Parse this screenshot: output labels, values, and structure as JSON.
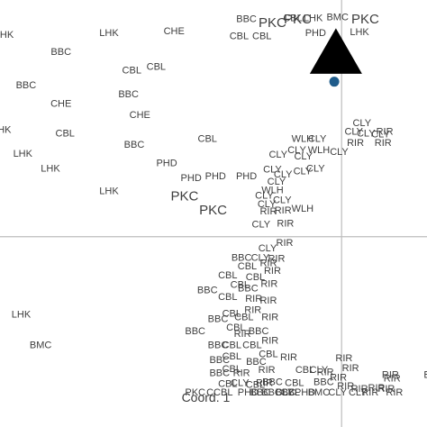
{
  "chart_data": {
    "type": "scatter",
    "title": "",
    "xlabel": "Coord. 1",
    "ylabel": "",
    "xlim": [
      -4.2,
      1.05
    ],
    "ylim": [
      -2.05,
      2.55
    ],
    "grid": false,
    "zero_lines": true,
    "colors": {
      "point": "#1f5c8b",
      "triangle": "#000000",
      "axis": "#bdbdbd",
      "text": "#3d3d3d"
    },
    "labels": [
      {
        "text": "LHK",
        "x": -4.15,
        "y": 2.14
      },
      {
        "text": "BBC",
        "x": -3.45,
        "y": 1.96
      },
      {
        "text": "LHK",
        "x": -2.86,
        "y": 2.16
      },
      {
        "text": "CHE",
        "x": -2.06,
        "y": 2.18
      },
      {
        "text": "CBL",
        "x": -2.58,
        "y": 1.76
      },
      {
        "text": "CBL",
        "x": -2.28,
        "y": 1.8
      },
      {
        "text": "BBC",
        "x": -3.88,
        "y": 1.6
      },
      {
        "text": "BBC",
        "x": -2.62,
        "y": 1.5
      },
      {
        "text": "CHE",
        "x": -3.45,
        "y": 1.4
      },
      {
        "text": "CHE",
        "x": -2.48,
        "y": 1.28
      },
      {
        "text": "LHK",
        "x": -4.18,
        "y": 1.12
      },
      {
        "text": "CBL",
        "x": -3.4,
        "y": 1.08
      },
      {
        "text": "BBC",
        "x": -2.55,
        "y": 0.96
      },
      {
        "text": "CBL",
        "x": -1.65,
        "y": 1.02
      },
      {
        "text": "LHK",
        "x": -3.92,
        "y": 0.86
      },
      {
        "text": "LHK",
        "x": -3.58,
        "y": 0.7
      },
      {
        "text": "PHD",
        "x": -2.15,
        "y": 0.76
      },
      {
        "text": "PHD",
        "x": -1.85,
        "y": 0.6
      },
      {
        "text": "PHD",
        "x": -1.55,
        "y": 0.62
      },
      {
        "text": "PHD",
        "x": -1.17,
        "y": 0.62
      },
      {
        "text": "LHK",
        "x": -2.86,
        "y": 0.46
      },
      {
        "text": "PKC",
        "x": -1.93,
        "y": 0.39,
        "big": true
      },
      {
        "text": "PKC",
        "x": -1.58,
        "y": 0.24,
        "big": true
      },
      {
        "text": "BBC",
        "x": -1.17,
        "y": 2.31
      },
      {
        "text": "CBL",
        "x": -1.26,
        "y": 2.13
      },
      {
        "text": "CBL",
        "x": -0.98,
        "y": 2.13
      },
      {
        "text": "PKC",
        "x": -0.85,
        "y": 2.26,
        "big": true
      },
      {
        "text": "CBL",
        "x": -0.6,
        "y": 2.32
      },
      {
        "text": "PKC",
        "x": -0.54,
        "y": 2.3,
        "big": true
      },
      {
        "text": "LHK",
        "x": -0.35,
        "y": 2.32
      },
      {
        "text": "BMC",
        "x": -0.05,
        "y": 2.33
      },
      {
        "text": "PKC",
        "x": 0.29,
        "y": 2.3,
        "big": true
      },
      {
        "text": "PHD",
        "x": -0.32,
        "y": 2.16
      },
      {
        "text": "LHK",
        "x": 0.22,
        "y": 2.17
      },
      {
        "text": "CLY",
        "x": 0.25,
        "y": 1.19
      },
      {
        "text": "CLY",
        "x": 0.15,
        "y": 1.1
      },
      {
        "text": "CLY",
        "x": 0.48,
        "y": 1.07
      },
      {
        "text": "RIR",
        "x": 0.53,
        "y": 1.1
      },
      {
        "text": "CLY",
        "x": 0.3,
        "y": 1.08
      },
      {
        "text": "RIR",
        "x": 0.17,
        "y": 0.98
      },
      {
        "text": "RIR",
        "x": 0.51,
        "y": 0.98
      },
      {
        "text": "CLY",
        "x": -0.3,
        "y": 1.02
      },
      {
        "text": "WLH",
        "x": -0.48,
        "y": 1.02
      },
      {
        "text": "CLY",
        "x": -0.55,
        "y": 0.9
      },
      {
        "text": "WLH",
        "x": -0.28,
        "y": 0.9
      },
      {
        "text": "CLY",
        "x": -0.03,
        "y": 0.88
      },
      {
        "text": "CLY",
        "x": -0.78,
        "y": 0.85
      },
      {
        "text": "CLY",
        "x": -0.47,
        "y": 0.83
      },
      {
        "text": "CLY",
        "x": -0.32,
        "y": 0.7
      },
      {
        "text": "CLY",
        "x": -0.85,
        "y": 0.69
      },
      {
        "text": "CLY",
        "x": -0.72,
        "y": 0.64
      },
      {
        "text": "CLY",
        "x": -0.48,
        "y": 0.67
      },
      {
        "text": "CLY",
        "x": -0.8,
        "y": 0.56
      },
      {
        "text": "WLH",
        "x": -0.85,
        "y": 0.47
      },
      {
        "text": "CLY",
        "x": -0.95,
        "y": 0.41
      },
      {
        "text": "CLY",
        "x": -0.92,
        "y": 0.32
      },
      {
        "text": "CLY",
        "x": -0.73,
        "y": 0.36
      },
      {
        "text": "RIR",
        "x": -0.72,
        "y": 0.25
      },
      {
        "text": "RIR",
        "x": -0.9,
        "y": 0.24
      },
      {
        "text": "WLH",
        "x": -0.48,
        "y": 0.27
      },
      {
        "text": "RIR",
        "x": -0.69,
        "y": 0.11
      },
      {
        "text": "CLY",
        "x": -0.99,
        "y": 0.1
      },
      {
        "text": "RIR",
        "x": -0.7,
        "y": -0.1
      },
      {
        "text": "CLY",
        "x": -0.91,
        "y": -0.16
      },
      {
        "text": "BBC",
        "x": -1.23,
        "y": -0.26
      },
      {
        "text": "CLY",
        "x": -1.0,
        "y": -0.26
      },
      {
        "text": "RIR",
        "x": -0.8,
        "y": -0.27
      },
      {
        "text": "RIR",
        "x": -0.9,
        "y": -0.32
      },
      {
        "text": "CBL",
        "x": -1.16,
        "y": -0.35
      },
      {
        "text": "CBL",
        "x": -1.4,
        "y": -0.45
      },
      {
        "text": "RIR",
        "x": -0.85,
        "y": -0.4
      },
      {
        "text": "CBL",
        "x": -1.06,
        "y": -0.47
      },
      {
        "text": "CBL",
        "x": -1.25,
        "y": -0.55
      },
      {
        "text": "BBC",
        "x": -1.15,
        "y": -0.59
      },
      {
        "text": "RIR",
        "x": -0.89,
        "y": -0.54
      },
      {
        "text": "BBC",
        "x": -1.65,
        "y": -0.61
      },
      {
        "text": "CBL",
        "x": -1.4,
        "y": -0.68
      },
      {
        "text": "RIR",
        "x": -0.9,
        "y": -0.72
      },
      {
        "text": "RIR",
        "x": -1.08,
        "y": -0.7
      },
      {
        "text": "CBL",
        "x": -1.35,
        "y": -0.86
      },
      {
        "text": "CBL",
        "x": -1.2,
        "y": -0.9
      },
      {
        "text": "RIR",
        "x": -1.09,
        "y": -0.82
      },
      {
        "text": "RIR",
        "x": -0.88,
        "y": -0.9
      },
      {
        "text": "BBC",
        "x": -1.52,
        "y": -0.92
      },
      {
        "text": "BBC",
        "x": -1.02,
        "y": -1.05
      },
      {
        "text": "CBL",
        "x": -1.3,
        "y": -1.01
      },
      {
        "text": "RIR",
        "x": -1.22,
        "y": -1.08
      },
      {
        "text": "LHK",
        "x": -3.94,
        "y": -0.87
      },
      {
        "text": "BBC",
        "x": -1.8,
        "y": -1.05
      },
      {
        "text": "BBC",
        "x": -1.52,
        "y": -1.2
      },
      {
        "text": "CBL",
        "x": -1.35,
        "y": -1.2
      },
      {
        "text": "CBL",
        "x": -1.1,
        "y": -1.2
      },
      {
        "text": "RIR",
        "x": -0.88,
        "y": -1.15
      },
      {
        "text": "BMC",
        "x": -3.7,
        "y": -1.2
      },
      {
        "text": "BBC",
        "x": -1.5,
        "y": -1.36
      },
      {
        "text": "CBL",
        "x": -1.35,
        "y": -1.32
      },
      {
        "text": "BBC",
        "x": -1.05,
        "y": -1.38
      },
      {
        "text": "RIR",
        "x": -0.65,
        "y": -1.33
      },
      {
        "text": "BBC",
        "x": -1.5,
        "y": -1.5
      },
      {
        "text": "CBL",
        "x": -1.35,
        "y": -1.46
      },
      {
        "text": "RIR",
        "x": -1.23,
        "y": -1.5
      },
      {
        "text": "RIR",
        "x": -0.92,
        "y": -1.47
      },
      {
        "text": "RIR",
        "x": 0.03,
        "y": -1.34
      },
      {
        "text": "RIR",
        "x": 0.11,
        "y": -1.45
      },
      {
        "text": "CBL",
        "x": -0.45,
        "y": -1.47
      },
      {
        "text": "CLY",
        "x": -0.28,
        "y": -1.47
      },
      {
        "text": "RIR",
        "x": -0.2,
        "y": -1.49
      },
      {
        "text": "CBL",
        "x": -1.4,
        "y": -1.62
      },
      {
        "text": "CLY",
        "x": -1.25,
        "y": -1.61
      },
      {
        "text": "CCBL",
        "x": -1.5,
        "y": -1.71
      },
      {
        "text": "PHD",
        "x": -1.15,
        "y": -1.71
      },
      {
        "text": "BBC",
        "x": -0.86,
        "y": -1.71
      },
      {
        "text": "CBL",
        "x": -0.63,
        "y": -1.71
      },
      {
        "text": "BMC",
        "x": -0.28,
        "y": -1.71
      },
      {
        "text": "CLY",
        "x": -0.05,
        "y": -1.71
      },
      {
        "text": "RIR",
        "x": 0.05,
        "y": -1.64
      },
      {
        "text": "RIR",
        "x": 0.22,
        "y": -1.67
      },
      {
        "text": "RIR",
        "x": 0.35,
        "y": -1.71
      },
      {
        "text": "RIR",
        "x": 0.55,
        "y": -1.67
      },
      {
        "text": "RIR",
        "x": 0.6,
        "y": -1.52
      },
      {
        "text": "RIR",
        "x": 0.43,
        "y": -1.66
      },
      {
        "text": "RIR",
        "x": 0.62,
        "y": -1.56
      },
      {
        "text": "RIR",
        "x": -0.04,
        "y": -1.55
      },
      {
        "text": "E",
        "x": 1.05,
        "y": -1.52
      },
      {
        "text": "BBC",
        "x": -0.85,
        "y": -1.6
      },
      {
        "text": "BBC",
        "x": -0.69,
        "y": -1.71
      },
      {
        "text": "CBL",
        "x": -0.9,
        "y": -1.3
      },
      {
        "text": "RIR",
        "x": -0.95,
        "y": -1.61
      },
      {
        "text": "CBL",
        "x": -1.06,
        "y": -1.63
      },
      {
        "text": "CLY",
        "x": -0.7,
        "y": -1.71
      },
      {
        "text": "BBC",
        "x": -1.0,
        "y": -1.71
      },
      {
        "text": "RIR",
        "x": 0.65,
        "y": -1.71
      },
      {
        "text": "CLY",
        "x": 0.2,
        "y": -1.71
      },
      {
        "text": "CBL",
        "x": -0.58,
        "y": -1.61
      },
      {
        "text": "PHD",
        "x": -0.45,
        "y": -1.71
      },
      {
        "text": "BBC",
        "x": -0.22,
        "y": -1.6
      },
      {
        "text": "PKC",
        "x": -1.8,
        "y": -1.71
      }
    ],
    "points": [
      {
        "marker": "circle",
        "x": -0.09,
        "y": 1.67
      },
      {
        "marker": "triangle",
        "x": -0.07,
        "y": 1.93
      }
    ]
  }
}
